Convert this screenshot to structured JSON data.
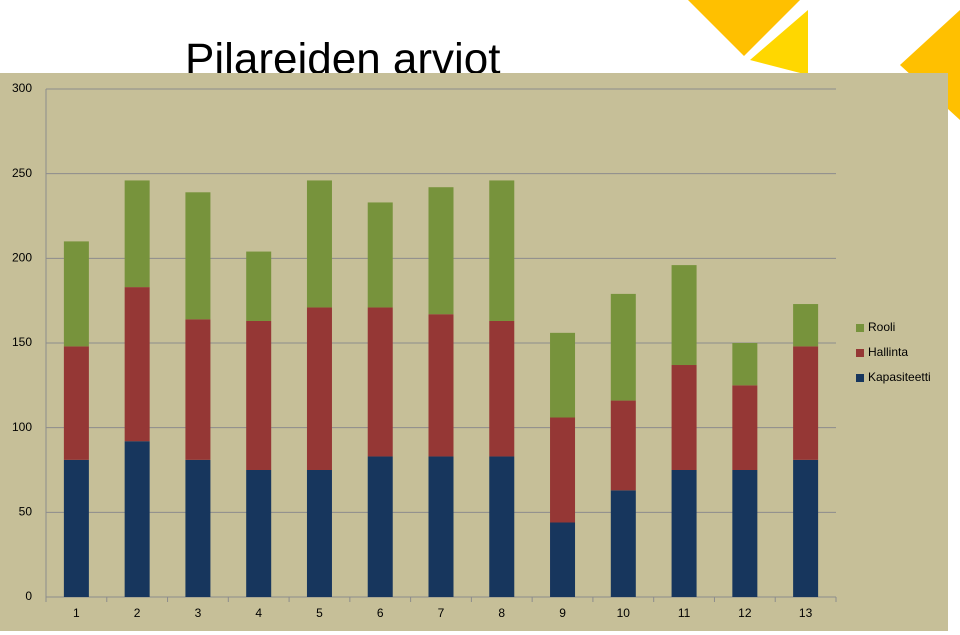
{
  "chart_data": {
    "type": "stacked_bar",
    "title": "Pilareiden arviot",
    "categories": [
      "1",
      "2",
      "3",
      "4",
      "5",
      "6",
      "7",
      "8",
      "9",
      "10",
      "11",
      "12",
      "13"
    ],
    "series": [
      {
        "name": "Kapasiteetti",
        "color": "#17365d",
        "values": [
          81,
          92,
          81,
          75,
          75,
          83,
          83,
          83,
          44,
          63,
          75,
          75,
          81
        ]
      },
      {
        "name": "Hallinta",
        "color": "#953735",
        "values": [
          67,
          91,
          83,
          88,
          96,
          88,
          84,
          80,
          62,
          53,
          62,
          50,
          67
        ]
      },
      {
        "name": "Rooli",
        "color": "#77933c",
        "values": [
          62,
          63,
          75,
          41,
          75,
          62,
          75,
          83,
          50,
          63,
          59,
          25,
          25
        ]
      }
    ],
    "ylim": [
      0,
      300
    ],
    "yticks": [
      0,
      50,
      100,
      150,
      200,
      250,
      300
    ],
    "grid": true,
    "legend": "right"
  }
}
